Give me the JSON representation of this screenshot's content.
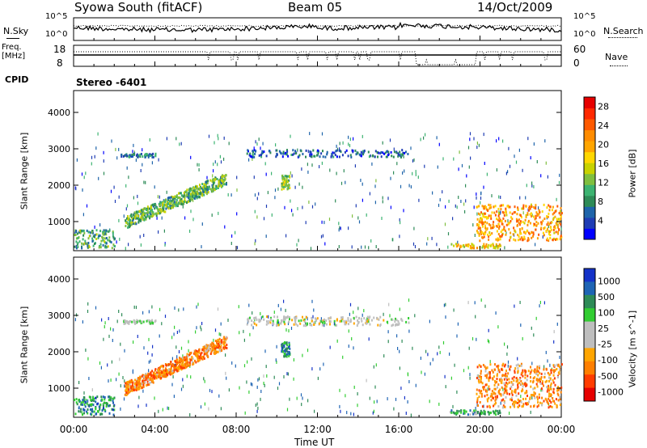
{
  "header": {
    "station": "Syowa South (fitACF)",
    "beam": "Beam 05",
    "date": "14/Oct/2009"
  },
  "labels": {
    "nsky": "N.Sky",
    "nsearch": "N.Search",
    "freq_line1": "Freq.",
    "freq_line2": "[MHz]",
    "nave": "Nave",
    "cpid": "CPID",
    "cpid_value": "Stereo -6401",
    "log_hi": "10^5",
    "log_lo": "10^0",
    "freq_hi": "18",
    "freq_lo": "8",
    "nave_hi": "60",
    "nave_lo": "0"
  },
  "colors": {
    "power": [
      "#0000ff",
      "#1e3cb4",
      "#1e64aa",
      "#2e8b57",
      "#3cb371",
      "#7fbf3f",
      "#c8d200",
      "#ffd700",
      "#ffa500",
      "#ff8c00",
      "#ff5a00",
      "#ff2800",
      "#e60000"
    ],
    "velocity": [
      "#1432c8",
      "#1e64b4",
      "#2e8b57",
      "#32cd32",
      "#bebebe",
      "#bebebe",
      "#ffa500",
      "#ff7f00",
      "#ff3c00",
      "#e60000"
    ]
  },
  "chart_data": [
    {
      "type": "line",
      "name_top": "N.Sky",
      "name_right": "N.Search",
      "xlabel": "",
      "ylabel": "",
      "y_ticks_left": [
        "10^5",
        "10^0"
      ]
    },
    {
      "type": "line",
      "name_left": "Freq. [MHz]",
      "name_right": "Nave",
      "y_ticks_left": [
        "18",
        "8"
      ],
      "y_ticks_right": [
        "60",
        "0"
      ]
    },
    {
      "type": "heatmap",
      "title": "",
      "ylabel": "Slant Range [km]",
      "y_ticks": [
        1000,
        2000,
        3000,
        4000
      ],
      "ylim": [
        200,
        4600
      ],
      "xlim": [
        0,
        24
      ],
      "colorbar_label": "Power [dB]",
      "colorbar_ticks": [
        4,
        8,
        12,
        16,
        20,
        24,
        28
      ],
      "regions": [
        {
          "t0": 0.0,
          "t1": 2.0,
          "r0": 300,
          "r1": 800,
          "level": 0.3
        },
        {
          "t0": 2.5,
          "t1": 7.5,
          "r0": 1000,
          "r1": 2200,
          "level": 0.35
        },
        {
          "t0": 2.3,
          "t1": 4.0,
          "r0": 2800,
          "r1": 2900,
          "level": 0.2
        },
        {
          "t0": 8.5,
          "t1": 16.5,
          "r0": 2800,
          "r1": 3000,
          "level": 0.15
        },
        {
          "t0": 10.2,
          "t1": 10.6,
          "r0": 1900,
          "r1": 2300,
          "level": 0.4
        },
        {
          "t0": 19.8,
          "t1": 24.0,
          "r0": 500,
          "r1": 1500,
          "level": 0.7
        },
        {
          "t0": 18.5,
          "t1": 21.0,
          "r0": 300,
          "r1": 420,
          "level": 0.6
        }
      ]
    },
    {
      "type": "heatmap",
      "title": "",
      "xlabel": "Time UT",
      "ylabel": "Slant Range [km]",
      "y_ticks": [
        1000,
        2000,
        3000,
        4000
      ],
      "ylim": [
        200,
        4600
      ],
      "xlim": [
        0,
        24
      ],
      "x_ticks": [
        "00:00",
        "04:00",
        "08:00",
        "12:00",
        "16:00",
        "20:00",
        "00:00"
      ],
      "colorbar_label": "Velocity [m s^-1]",
      "colorbar_ticks": [
        1000,
        500,
        100,
        25,
        -25,
        -100,
        -500,
        -1000
      ],
      "regions": [
        {
          "t0": 0.0,
          "t1": 2.0,
          "r0": 300,
          "r1": 800,
          "level": 0.2
        },
        {
          "t0": 2.5,
          "t1": 7.5,
          "r0": 1000,
          "r1": 2300,
          "level": 0.75
        },
        {
          "t0": 2.3,
          "t1": 4.0,
          "r0": 2800,
          "r1": 2900,
          "level": 0.45
        },
        {
          "t0": 8.5,
          "t1": 16.5,
          "r0": 2750,
          "r1": 3000,
          "level": 0.5
        },
        {
          "t0": 10.2,
          "t1": 10.6,
          "r0": 1900,
          "r1": 2300,
          "level": 0.15
        },
        {
          "t0": 19.8,
          "t1": 24.0,
          "r0": 500,
          "r1": 1700,
          "level": 0.75
        },
        {
          "t0": 18.5,
          "t1": 21.0,
          "r0": 300,
          "r1": 420,
          "level": 0.3
        }
      ]
    }
  ]
}
